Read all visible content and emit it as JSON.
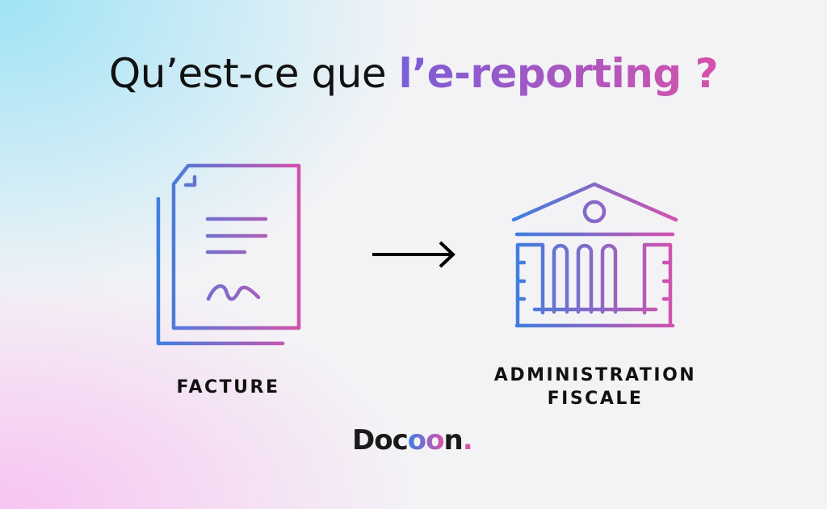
{
  "title": {
    "plain": "Qu’est-ce que ",
    "highlight": "l’e-reporting ?"
  },
  "flow": {
    "source": {
      "label": "FACTURE",
      "icon": "invoice-document-icon"
    },
    "arrow": "arrow-right-icon",
    "target": {
      "label_line1": "ADMINISTRATION",
      "label_line2": "FISCALE",
      "icon": "government-building-icon"
    }
  },
  "logo": {
    "prefix": "Doc",
    "mark": "oo",
    "suffix": "n",
    "dot": "."
  },
  "colors": {
    "gradient_start": "#3d7fe0",
    "gradient_end": "#d552ab",
    "text": "#111111"
  }
}
